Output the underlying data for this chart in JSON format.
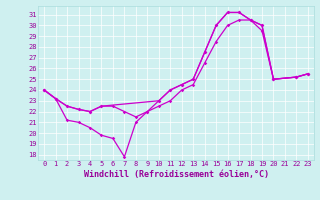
{
  "bg_color": "#cff0f0",
  "line_color": "#cc00cc",
  "xlim_min": -0.5,
  "xlim_max": 23.5,
  "ylim_min": 17.5,
  "ylim_max": 31.8,
  "xticks": [
    0,
    1,
    2,
    3,
    4,
    5,
    6,
    7,
    8,
    9,
    10,
    11,
    12,
    13,
    14,
    15,
    16,
    17,
    18,
    19,
    20,
    21,
    22,
    23
  ],
  "yticks": [
    18,
    19,
    20,
    21,
    22,
    23,
    24,
    25,
    26,
    27,
    28,
    29,
    30,
    31
  ],
  "line1_x": [
    0,
    1,
    2,
    3,
    4,
    5,
    10,
    11,
    12,
    13,
    14,
    15,
    16,
    17,
    18,
    19,
    20,
    22,
    23
  ],
  "line1_y": [
    24.0,
    23.2,
    22.5,
    22.2,
    22.0,
    22.5,
    23.0,
    24.0,
    24.5,
    25.0,
    27.5,
    30.0,
    31.2,
    31.2,
    30.5,
    30.0,
    25.0,
    25.2,
    25.5
  ],
  "line2_x": [
    0,
    1,
    2,
    3,
    4,
    5,
    6,
    7,
    8,
    9,
    10,
    11,
    12,
    13,
    14,
    15,
    16,
    17,
    18,
    19,
    20,
    22,
    23
  ],
  "line2_y": [
    24.0,
    23.2,
    22.5,
    22.2,
    22.0,
    22.5,
    22.5,
    22.0,
    21.5,
    22.0,
    23.0,
    24.0,
    24.5,
    25.0,
    27.5,
    30.0,
    31.2,
    31.2,
    30.5,
    30.0,
    25.0,
    25.2,
    25.5
  ],
  "line3_x": [
    0,
    1,
    2,
    3,
    4,
    5,
    6,
    7,
    8,
    9,
    10,
    11,
    12,
    13,
    14,
    15,
    16,
    17,
    18,
    19,
    20,
    22,
    23
  ],
  "line3_y": [
    24.0,
    23.2,
    21.2,
    21.0,
    20.5,
    19.8,
    19.5,
    17.8,
    21.0,
    22.0,
    22.5,
    23.0,
    24.0,
    24.5,
    26.5,
    28.5,
    30.0,
    30.5,
    30.5,
    29.5,
    25.0,
    25.2,
    25.5
  ],
  "marker": "D",
  "markersize": 1.8,
  "linewidth": 0.9,
  "font_color": "#990099",
  "tick_fontsize": 5.0,
  "xlabel": "Windchill (Refroidissement éolien,°C)",
  "xlabel_fontsize": 6.0
}
